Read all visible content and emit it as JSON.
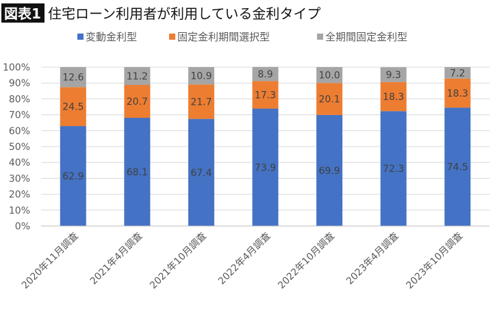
{
  "chart_data": {
    "type": "stacked-bar",
    "title_badge": "図表1",
    "title": "住宅ローン利用者が利用している金利タイプ",
    "categories": [
      "2020年11月調査",
      "2021年4月調査",
      "2021年10月調査",
      "2022年4月調査",
      "2022年10月調査",
      "2023年4月調査",
      "2023年10月調査"
    ],
    "series": [
      {
        "name": "変動金利型",
        "color": "#4472c4",
        "values": [
          62.9,
          68.1,
          67.4,
          73.9,
          69.9,
          72.3,
          74.5
        ]
      },
      {
        "name": "固定金利期間選択型",
        "color": "#ed7d31",
        "values": [
          24.5,
          20.7,
          21.7,
          17.3,
          20.1,
          18.3,
          18.3
        ]
      },
      {
        "name": "全期間固定金利型",
        "color": "#a5a5a5",
        "values": [
          12.6,
          11.2,
          10.9,
          8.9,
          10.0,
          9.3,
          7.2
        ]
      }
    ],
    "yticks": [
      "0%",
      "10%",
      "20%",
      "30%",
      "40%",
      "50%",
      "60%",
      "70%",
      "80%",
      "90%",
      "100%"
    ],
    "ylim": [
      0,
      100
    ],
    "grid": true,
    "legend": "top"
  }
}
